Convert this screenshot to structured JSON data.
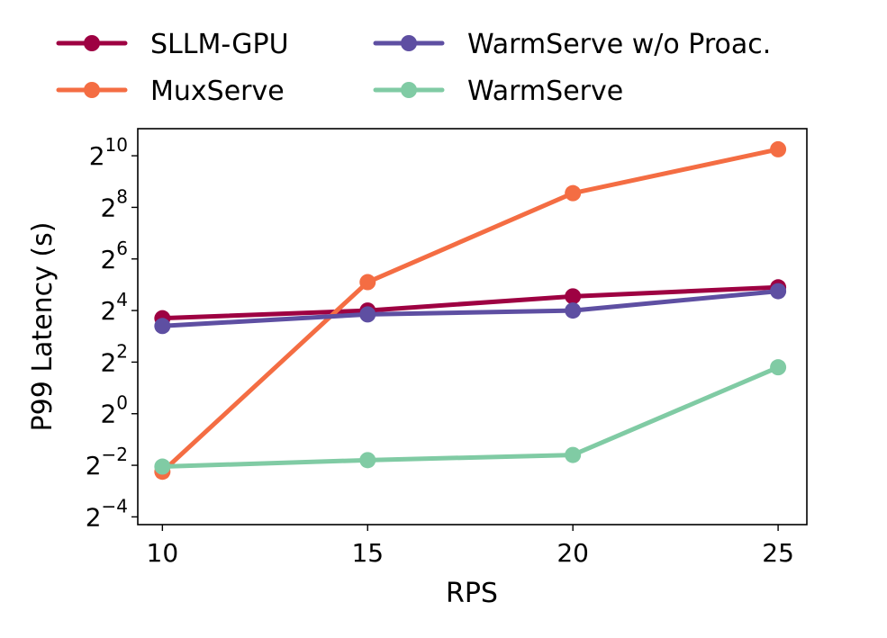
{
  "chart_data": {
    "type": "line",
    "title": "",
    "xlabel": "RPS",
    "ylabel": "P99 Latency (s)",
    "yscale": "log2",
    "x": [
      10,
      15,
      20,
      25
    ],
    "xticks": [
      "10",
      "15",
      "20",
      "25"
    ],
    "xlim": [
      9.4,
      25.7
    ],
    "yticks": [
      {
        "exp": -4,
        "base": "2",
        "sup": "−4"
      },
      {
        "exp": -2,
        "base": "2",
        "sup": "−2"
      },
      {
        "exp": 0,
        "base": "2",
        "sup": "0"
      },
      {
        "exp": 2,
        "base": "2",
        "sup": "2"
      },
      {
        "exp": 4,
        "base": "2",
        "sup": "4"
      },
      {
        "exp": 6,
        "base": "2",
        "sup": "6"
      },
      {
        "exp": 8,
        "base": "2",
        "sup": "8"
      },
      {
        "exp": 10,
        "base": "2",
        "sup": "10"
      }
    ],
    "ylim_log2": [
      -4.3,
      11.05
    ],
    "legend_location": "top, above plot, two columns",
    "series": [
      {
        "name": "SLLM-GPU",
        "color": "#9e0142",
        "log2_values": [
          3.7,
          4.0,
          4.55,
          4.9
        ]
      },
      {
        "name": "MuxServe",
        "color": "#f46d43",
        "log2_values": [
          -2.25,
          5.1,
          8.55,
          10.25
        ]
      },
      {
        "name": "WarmServe w/o Proac.",
        "color": "#5e4fa2",
        "log2_values": [
          3.4,
          3.85,
          4.0,
          4.75
        ]
      },
      {
        "name": "WarmServe",
        "color": "#80cba4",
        "log2_values": [
          -2.05,
          -1.8,
          -1.6,
          1.8
        ]
      }
    ]
  }
}
